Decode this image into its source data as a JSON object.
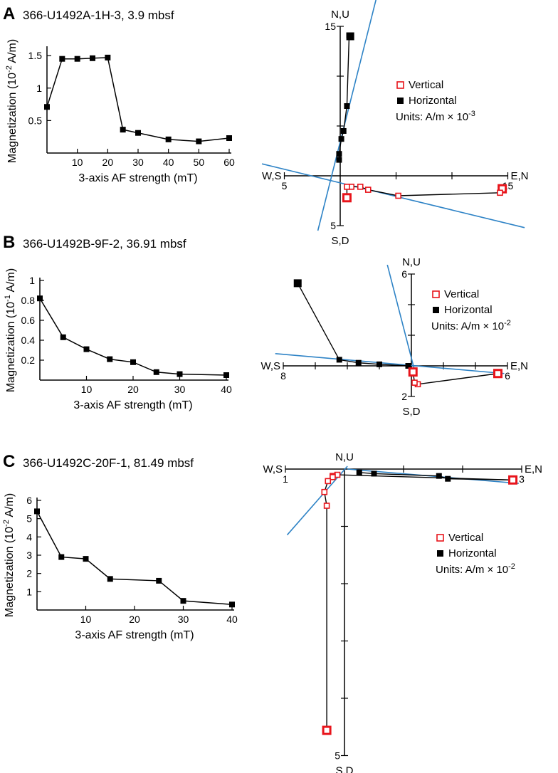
{
  "chart_data": [
    {
      "panel": "A",
      "title": "366-U1492A-1H-3, 3.9 mbsf",
      "demag": {
        "type": "line",
        "xlabel": "3-axis AF strength (mT)",
        "ylabel_pre": "Magnetization (10",
        "ylabel_exp": "-2",
        "ylabel_post": " A/m)",
        "xlim": [
          0,
          60
        ],
        "ylim": [
          0,
          1.6
        ],
        "xticks": [
          10,
          20,
          30,
          40,
          50,
          60
        ],
        "yticks": [
          0.5,
          1,
          1.5
        ],
        "ytick_labels": [
          "0.5",
          "1",
          "1.5"
        ],
        "x": [
          0,
          5,
          10,
          15,
          20,
          25,
          30,
          40,
          50,
          60
        ],
        "y": [
          0.71,
          1.45,
          1.45,
          1.46,
          1.47,
          0.36,
          0.31,
          0.21,
          0.18,
          0.23
        ]
      },
      "zijderveld": {
        "type": "scatter",
        "labels": {
          "north": "N,U",
          "south": "S,D",
          "west": "W,S",
          "east": "E,N"
        },
        "tick_labels": {
          "north": "15",
          "south": "5",
          "west": "5",
          "east": "15"
        },
        "xlim": [
          -5,
          15
        ],
        "ylim": [
          -5,
          15
        ],
        "xticks": [
          -5,
          5,
          10,
          15
        ],
        "yticks": [
          -5,
          5,
          10,
          15
        ],
        "vertical": {
          "x": [
            14.5,
            14.3,
            5.2,
            2.5,
            1.8,
            1.0,
            0.6,
            0.6
          ],
          "y": [
            -1.3,
            -1.7,
            -2.0,
            -1.4,
            -1.1,
            -1.1,
            -1.1,
            -2.2
          ]
        },
        "horizontal": {
          "x": [
            0.9,
            0.8,
            0.6,
            0.3,
            0.1,
            -0.1,
            -0.1
          ],
          "y": [
            14.0,
            14.1,
            7.0,
            4.5,
            3.7,
            2.2,
            1.6
          ]
        },
        "fit_lines": [
          [
            [
              -2.0,
              -5.5
            ],
            [
              3.5,
              19.0
            ]
          ],
          [
            [
              -7.0,
              1.2
            ],
            [
              16.5,
              -5.2
            ]
          ]
        ],
        "legend": {
          "vertical": "Vertical",
          "horizontal": "Horizontal",
          "units_pre": "Units: A/m × 10",
          "units_exp": "-3"
        }
      }
    },
    {
      "panel": "B",
      "title": "366-U1492B-9F-2, 36.91 mbsf",
      "demag": {
        "type": "line",
        "xlabel": "3-axis AF strength (mT)",
        "ylabel_pre": "Magnetization (10",
        "ylabel_exp": "-1",
        "ylabel_post": " A/m)",
        "xlim": [
          0,
          40
        ],
        "ylim": [
          0,
          1.0
        ],
        "xticks": [
          10,
          20,
          30,
          40
        ],
        "yticks": [
          0.2,
          0.4,
          0.6,
          0.8,
          1
        ],
        "ytick_labels": [
          "0.2",
          "0.4",
          "0.6",
          "0.8",
          "1"
        ],
        "x": [
          0,
          5,
          10,
          15,
          20,
          25,
          30,
          40
        ],
        "y": [
          0.82,
          0.43,
          0.31,
          0.21,
          0.18,
          0.08,
          0.06,
          0.05
        ]
      },
      "zijderveld": {
        "type": "scatter",
        "labels": {
          "north": "N,U",
          "south": "S,D",
          "west": "W,S",
          "east": "E,N"
        },
        "tick_labels": {
          "north": "6",
          "south": "2",
          "west": "8",
          "east": "6"
        },
        "xlim": [
          -8,
          6
        ],
        "ylim": [
          -2,
          6
        ],
        "xticks": [
          -8,
          -6,
          -4,
          -2,
          2,
          4,
          6
        ],
        "yticks": [
          -2,
          2,
          4,
          6
        ],
        "vertical": {
          "x": [
            5.4,
            0.4,
            0.2,
            0.1
          ],
          "y": [
            -0.5,
            -1.2,
            -1.1,
            -0.4
          ]
        },
        "horizontal": {
          "x": [
            -7.1,
            -4.5,
            -3.3,
            -2.0,
            -0.2
          ],
          "y": [
            5.4,
            0.4,
            0.2,
            0.1,
            0.0
          ]
        },
        "fit_lines": [
          [
            [
              -1.5,
              6.6
            ],
            [
              0.2,
              -0.3
            ]
          ],
          [
            [
              -8.5,
              0.8
            ],
            [
              5.8,
              -0.5
            ]
          ]
        ],
        "legend": {
          "vertical": "Vertical",
          "horizontal": "Horizontal",
          "units_pre": "Units: A/m × 10",
          "units_exp": "-2"
        }
      }
    },
    {
      "panel": "C",
      "title": "366-U1492C-20F-1, 81.49 mbsf",
      "demag": {
        "type": "line",
        "xlabel": "3-axis AF strength (mT)",
        "ylabel_pre": "Magnetization (10",
        "ylabel_exp": "-2",
        "ylabel_post": " A/m)",
        "xlim": [
          0,
          40
        ],
        "ylim": [
          0,
          6
        ],
        "xticks": [
          10,
          20,
          30,
          40
        ],
        "yticks": [
          1,
          2,
          3,
          4,
          5,
          6
        ],
        "ytick_labels": [
          "1",
          "2",
          "3",
          "4",
          "5",
          "6"
        ],
        "x": [
          0,
          5,
          10,
          15,
          25,
          30,
          40
        ],
        "y": [
          5.4,
          2.9,
          2.8,
          1.7,
          1.6,
          0.5,
          0.3
        ]
      },
      "zijderveld": {
        "type": "scatter",
        "labels": {
          "north": "N,U",
          "south": "S,D",
          "west": "W,S",
          "east": "E,N"
        },
        "tick_labels": {
          "north": "",
          "south": "5",
          "west": "1",
          "east": "3"
        },
        "xlim": [
          -1,
          3
        ],
        "ylim": [
          -5,
          0
        ],
        "xticks": [
          -1,
          1,
          2,
          3
        ],
        "yticks": [
          -1,
          -2,
          -3,
          -4,
          -5
        ],
        "vertical": {
          "x": [
            2.85,
            -0.12,
            -0.2,
            -0.2,
            -0.28,
            -0.34,
            -0.3,
            -0.3
          ],
          "y": [
            -0.19,
            -0.1,
            -0.12,
            -0.14,
            -0.21,
            -0.4,
            -0.64,
            -4.56
          ]
        },
        "horizontal": {
          "x": [
            2.85,
            1.75,
            1.6,
            0.5,
            0.25
          ],
          "y": [
            -0.19,
            -0.17,
            -0.12,
            -0.08,
            -0.06
          ]
        },
        "fit_lines": [
          [
            [
              -0.97,
              -1.15
            ],
            [
              0.05,
              0.05
            ]
          ],
          [
            [
              0.05,
              0.0
            ],
            [
              2.95,
              -0.25
            ]
          ]
        ],
        "legend": {
          "vertical": "Vertical",
          "horizontal": "Horizontal",
          "units_pre": "Units: A/m × 10",
          "units_exp": "-2"
        }
      }
    }
  ],
  "colors": {
    "vertical": "#e8141b",
    "horizontal": "#000000",
    "fit_line": "#2e83c6",
    "axis": "#000000"
  }
}
